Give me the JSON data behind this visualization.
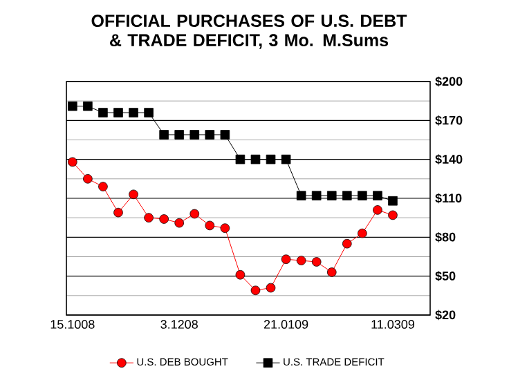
{
  "chart_data": {
    "type": "line",
    "title": "OFFICIAL PURCHASES OF U.S. DEBT & TRADE DEFICIT, 3 Mo. M.Sums",
    "categories": [
      "15.1008",
      null,
      null,
      null,
      null,
      null,
      null,
      "3.1208",
      null,
      null,
      null,
      null,
      null,
      null,
      "21.0109",
      null,
      null,
      null,
      null,
      null,
      null,
      "11.0309"
    ],
    "series": [
      {
        "name": "U.S. DEB BOUGHT",
        "color": "#ff0000",
        "marker": "circle",
        "values": [
          138,
          125,
          119,
          99,
          113,
          95,
          94,
          91,
          98,
          89,
          87,
          51,
          39,
          41,
          63,
          62,
          61,
          53,
          75,
          83,
          101,
          97
        ]
      },
      {
        "name": "U.S. TRADE DEFICIT",
        "color": "#000000",
        "marker": "square",
        "values": [
          181,
          181,
          176,
          176,
          176,
          176,
          159,
          159,
          159,
          159,
          159,
          140,
          140,
          140,
          140,
          112,
          112,
          112,
          112,
          112,
          112,
          108
        ]
      }
    ],
    "ylim": [
      20,
      200
    ],
    "yticks": [
      {
        "value": 20,
        "label": "$20"
      },
      {
        "value": 35,
        "label": null
      },
      {
        "value": 50,
        "label": "$50"
      },
      {
        "value": 65,
        "label": null
      },
      {
        "value": 80,
        "label": "$80"
      },
      {
        "value": 95,
        "label": null
      },
      {
        "value": 110,
        "label": "$110"
      },
      {
        "value": 125,
        "label": null
      },
      {
        "value": 140,
        "label": "$140"
      },
      {
        "value": 155,
        "label": null
      },
      {
        "value": 170,
        "label": "$170"
      },
      {
        "value": 185,
        "label": null
      },
      {
        "value": 200,
        "label": "$200"
      }
    ],
    "grid": "y",
    "legend": "bottom"
  }
}
